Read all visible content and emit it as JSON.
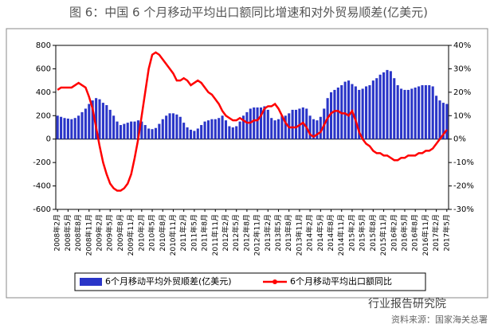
{
  "chart_data": {
    "type": "bar-line",
    "title": "图 6：中国 6 个月移动平均出口额同比增速和对外贸易顺差(亿美元)",
    "categories": [
      "2008年2月",
      null,
      null,
      "2008年5月",
      null,
      null,
      "2008年8月",
      null,
      null,
      "2008年11月",
      null,
      null,
      "2009年2月",
      null,
      null,
      "2009年5月",
      null,
      null,
      "2009年8月",
      null,
      null,
      "2009年11月",
      null,
      null,
      "2010年2月",
      null,
      null,
      "2010年5月",
      null,
      null,
      "2010年8月",
      null,
      null,
      "2010年11月",
      null,
      null,
      "2011年2月",
      null,
      null,
      "2011年5月",
      null,
      null,
      "2011年8月",
      null,
      null,
      "2011年11月",
      null,
      null,
      "2012年2月",
      null,
      null,
      "2012年5月",
      null,
      null,
      "2012年8月",
      null,
      null,
      "2012年11月",
      null,
      null,
      "2013年2月",
      null,
      null,
      "2013年5月",
      null,
      null,
      "2013年8月",
      null,
      null,
      "2013年11月",
      null,
      null,
      "2014年2月",
      null,
      null,
      "2014年5月",
      null,
      null,
      "2014年8月",
      null,
      null,
      "2014年11月",
      null,
      null,
      "2015年2月",
      null,
      null,
      "2015年5月",
      null,
      null,
      "2015年8月",
      null,
      null,
      "2015年11月",
      null,
      null,
      "2016年2月",
      null,
      null,
      "2016年5月",
      null,
      null,
      "2016年8月",
      null,
      null,
      "2016年11月",
      null,
      null,
      "2017年2月",
      null,
      null,
      "2017年5月"
    ],
    "series": [
      {
        "name": "6个月移动平均外贸顺差(亿美元)",
        "color": "#2a35c8",
        "values": [
          200,
          190,
          180,
          175,
          170,
          180,
          200,
          230,
          260,
          300,
          330,
          350,
          340,
          310,
          290,
          250,
          200,
          150,
          120,
          130,
          140,
          150,
          150,
          160,
          150,
          120,
          90,
          85,
          95,
          130,
          170,
          200,
          220,
          220,
          210,
          190,
          140,
          100,
          80,
          70,
          90,
          120,
          150,
          160,
          170,
          170,
          180,
          200,
          160,
          110,
          100,
          110,
          150,
          200,
          230,
          260,
          270,
          270,
          270,
          280,
          250,
          180,
          160,
          170,
          200,
          200,
          220,
          250,
          250,
          260,
          270,
          260,
          200,
          170,
          160,
          190,
          260,
          350,
          400,
          420,
          440,
          460,
          490,
          500,
          470,
          450,
          420,
          430,
          450,
          460,
          500,
          520,
          550,
          570,
          590,
          580,
          520,
          460,
          430,
          420,
          420,
          430,
          440,
          450,
          460,
          460,
          460,
          450,
          370,
          330,
          310,
          300
        ]
      },
      {
        "name": "6个月移动平均出口额同比",
        "color": "#ff0000",
        "axis": "y2",
        "values": [
          21,
          22,
          22,
          22,
          22,
          23,
          24,
          23,
          22,
          18,
          13,
          5,
          -3,
          -10,
          -15,
          -19,
          -21,
          -22,
          -22,
          -21,
          -19,
          -15,
          -8,
          0,
          10,
          20,
          30,
          36,
          37,
          36,
          34,
          32,
          30,
          28,
          25,
          25,
          26,
          25,
          23,
          24,
          25,
          24,
          22,
          20,
          19,
          17,
          15,
          12,
          10,
          9,
          8,
          8,
          9,
          8,
          7,
          7,
          8,
          8,
          10,
          13,
          14,
          14,
          15,
          13,
          10,
          7,
          5,
          5,
          5,
          6,
          7,
          5,
          2,
          1,
          2,
          3,
          6,
          9,
          11,
          12,
          12,
          11,
          11,
          10,
          12,
          8,
          3,
          0,
          -2,
          -3,
          -5,
          -6,
          -6,
          -7,
          -7,
          -8,
          -9,
          -9,
          -8,
          -8,
          -7,
          -7,
          -7,
          -6,
          -6,
          -5,
          -5,
          -4,
          -2,
          0,
          2,
          4
        ]
      }
    ],
    "ylim": [
      -600,
      800
    ],
    "yticks": [
      -600,
      -400,
      -200,
      0,
      200,
      400,
      600,
      800
    ],
    "y2lim": [
      -30,
      40
    ],
    "y2ticks": [
      {
        "value": -30,
        "label": "-30%"
      },
      {
        "value": -20,
        "label": "-20%"
      },
      {
        "value": -10,
        "label": "-10%"
      },
      {
        "value": 0,
        "label": "0%"
      },
      {
        "value": 10,
        "label": "10%"
      },
      {
        "value": 20,
        "label": "20%"
      },
      {
        "value": 30,
        "label": "30%"
      },
      {
        "value": 40,
        "label": "40%"
      }
    ],
    "watermark": "行业报告研究院",
    "source": "资料来源：国家海关总署"
  }
}
